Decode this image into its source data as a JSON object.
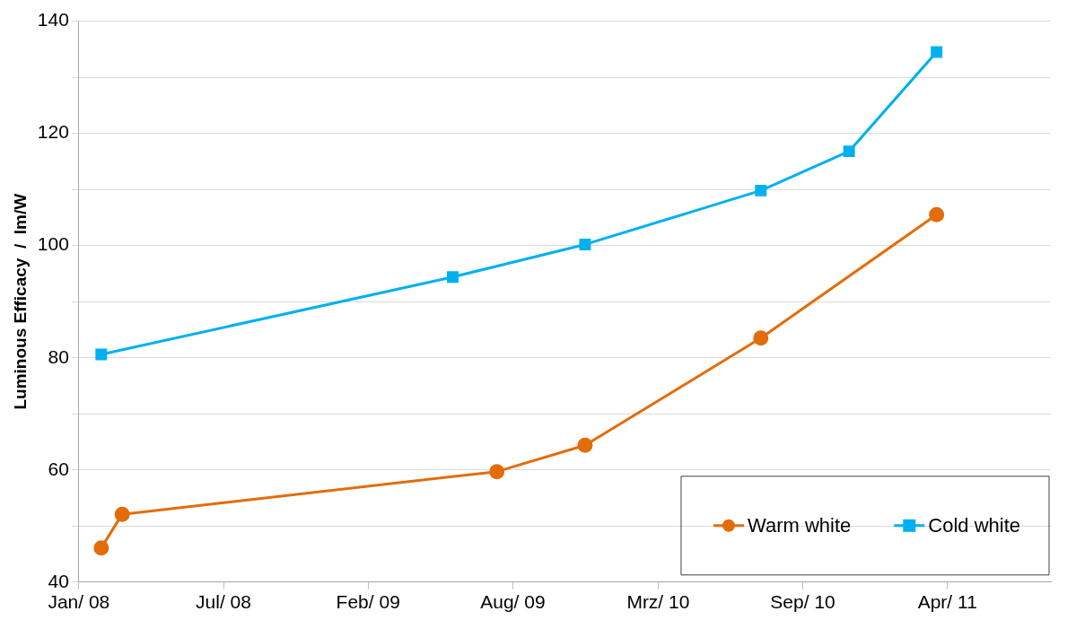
{
  "chart_data": {
    "type": "line",
    "ylabel": "Luminous Efficacy  /  lm/W",
    "xlim": [
      "2008-01-01",
      "2011-09-06"
    ],
    "xticks": [
      {
        "value": "2008-01-01",
        "label": "Jan/ 08"
      },
      {
        "value": "2008-07-19",
        "label": "Jul/ 08"
      },
      {
        "value": "2009-02-04",
        "label": "Feb/ 09"
      },
      {
        "value": "2009-08-23",
        "label": "Aug/ 09"
      },
      {
        "value": "2010-03-12",
        "label": "Mrz/ 10"
      },
      {
        "value": "2010-09-28",
        "label": "Sep/ 10"
      },
      {
        "value": "2011-04-16",
        "label": "Apr/ 11"
      }
    ],
    "ylim": [
      40,
      140
    ],
    "yticks": [
      40,
      {
        "value": 50,
        "label": null
      },
      60,
      {
        "value": 70,
        "label": null
      },
      80,
      {
        "value": 90,
        "label": null
      },
      100,
      {
        "value": 110,
        "label": null
      },
      120,
      {
        "value": 130,
        "label": null
      },
      140
    ],
    "grid": "y",
    "legend": "bottom right",
    "series": [
      {
        "name": "Warm white",
        "color": "#e36c0a",
        "marker": "circle",
        "x": [
          "2008-02-01",
          "2008-03-01",
          "2009-08-01",
          "2009-12-01",
          "2010-08-01",
          "2011-04-01"
        ],
        "values": [
          46.1,
          52.1,
          59.7,
          64.4,
          83.5,
          105.5
        ]
      },
      {
        "name": "Cold white",
        "color": "#00b0f0",
        "marker": "square",
        "x": [
          "2008-02-01",
          "2009-06-01",
          "2009-12-01",
          "2010-08-01",
          "2010-12-01",
          "2011-04-01"
        ],
        "values": [
          80.6,
          94.4,
          100.2,
          109.8,
          116.8,
          134.5
        ]
      }
    ]
  }
}
